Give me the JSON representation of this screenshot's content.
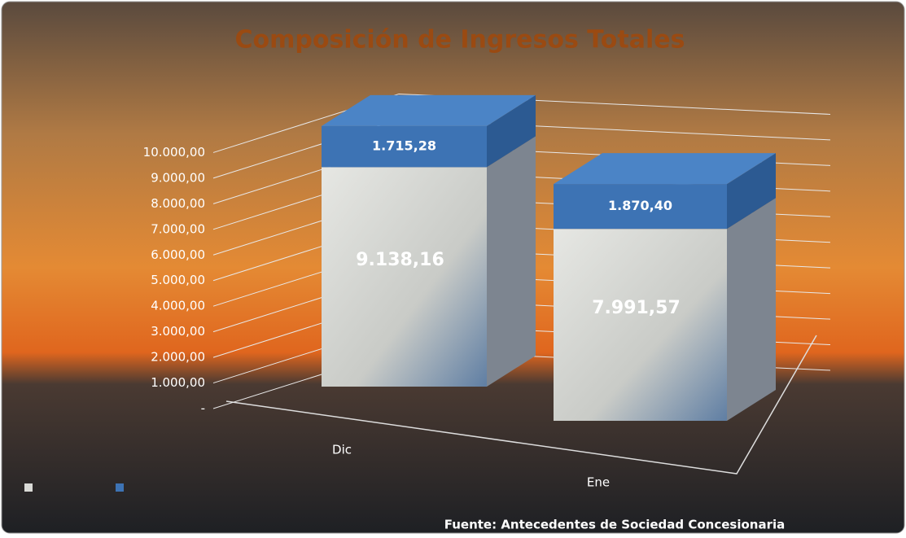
{
  "chart_data": {
    "type": "bar3d_stacked",
    "title": "Composición de Ingresos Totales",
    "source": "Fuente: Antecedentes de Sociedad Concesionaria",
    "categories": [
      "Dic",
      "Ene"
    ],
    "series": [
      {
        "color": "#d9dad6",
        "values": [
          9138.16,
          7991.57
        ],
        "value_labels": [
          "9.138,16",
          "7.991,57"
        ]
      },
      {
        "color": "#3d73b4",
        "values": [
          1715.28,
          1870.4
        ],
        "value_labels": [
          "1.715,28",
          "1.870,40"
        ]
      }
    ],
    "ylim": [
      0,
      11000
    ],
    "yticks": [
      {
        "value": 0,
        "label": "-"
      },
      {
        "value": 1000,
        "label": "1.000,00"
      },
      {
        "value": 2000,
        "label": "2.000,00"
      },
      {
        "value": 3000,
        "label": "3.000,00"
      },
      {
        "value": 4000,
        "label": "4.000,00"
      },
      {
        "value": 5000,
        "label": "5.000,00"
      },
      {
        "value": 6000,
        "label": "6.000,00"
      },
      {
        "value": 7000,
        "label": "7.000,00"
      },
      {
        "value": 8000,
        "label": "8.000,00"
      },
      {
        "value": 9000,
        "label": "9.000,00"
      },
      {
        "value": 10000,
        "label": "10.000,00"
      }
    ],
    "grid": true
  }
}
